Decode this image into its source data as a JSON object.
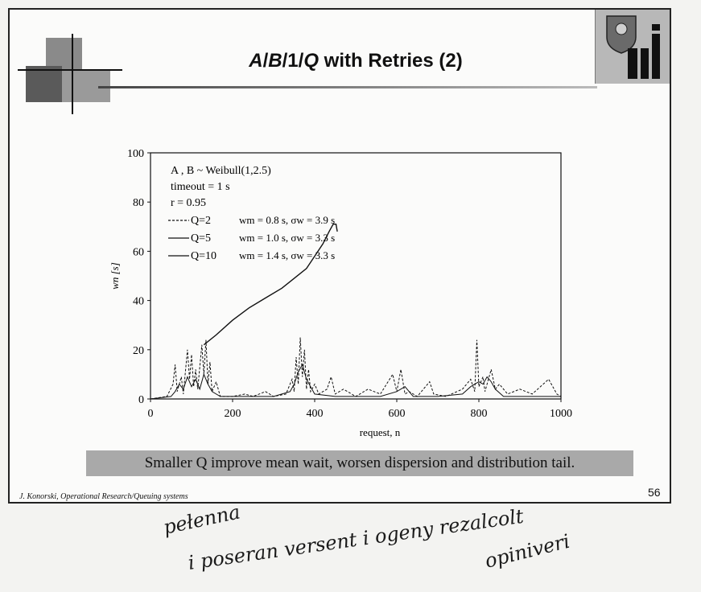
{
  "slide": {
    "title_parts": [
      {
        "text": "A",
        "italic": true
      },
      {
        "text": "/",
        "italic": false
      },
      {
        "text": "B",
        "italic": true
      },
      {
        "text": "/1/",
        "italic": false
      },
      {
        "text": "Q",
        "italic": true
      },
      {
        "text": " with Retries (2)",
        "italic": false
      }
    ],
    "callout": "Smaller Q improve mean wait, worsen dispersion and distribution tail.",
    "footer": "J. Konorski, Operational Research/Queuing systems",
    "page_number": "56"
  },
  "handwriting": {
    "lines": [
      "pełenna",
      "i poseran  versent  i  ogeny  rezalcolt",
      "opiniveri"
    ],
    "text_color": "#1a1a1a"
  },
  "chart_data": {
    "type": "line",
    "xlabel": "request, n",
    "ylabel": "wn [s]",
    "xlim": [
      0,
      1000
    ],
    "ylim": [
      0,
      100
    ],
    "xticks": [
      0,
      200,
      400,
      600,
      800,
      1000
    ],
    "yticks": [
      0,
      20,
      40,
      60,
      80,
      100
    ],
    "grid": false,
    "annotations": [
      "A , B ~ Weibull(1,2.5)",
      "timeout = 1 s",
      "r = 0.95"
    ],
    "legend_position": "top-left",
    "series": [
      {
        "name": "Q=2",
        "legend_text": "wm = 0.8 s, σw = 3.9 s",
        "style": "dashed",
        "points": [
          [
            0,
            0
          ],
          [
            40,
            1
          ],
          [
            55,
            6
          ],
          [
            60,
            14
          ],
          [
            65,
            3
          ],
          [
            75,
            9
          ],
          [
            80,
            2
          ],
          [
            90,
            20
          ],
          [
            95,
            8
          ],
          [
            100,
            18
          ],
          [
            105,
            5
          ],
          [
            110,
            12
          ],
          [
            115,
            4
          ],
          [
            125,
            22
          ],
          [
            130,
            10
          ],
          [
            135,
            24
          ],
          [
            140,
            6
          ],
          [
            145,
            15
          ],
          [
            150,
            3
          ],
          [
            160,
            7
          ],
          [
            170,
            1
          ],
          [
            200,
            1
          ],
          [
            230,
            2
          ],
          [
            250,
            1
          ],
          [
            280,
            3
          ],
          [
            300,
            1
          ],
          [
            330,
            2
          ],
          [
            345,
            8
          ],
          [
            350,
            3
          ],
          [
            355,
            17
          ],
          [
            360,
            6
          ],
          [
            365,
            25
          ],
          [
            370,
            9
          ],
          [
            375,
            20
          ],
          [
            380,
            4
          ],
          [
            385,
            12
          ],
          [
            390,
            3
          ],
          [
            400,
            6
          ],
          [
            410,
            2
          ],
          [
            430,
            4
          ],
          [
            440,
            9
          ],
          [
            450,
            2
          ],
          [
            470,
            4
          ],
          [
            500,
            1
          ],
          [
            530,
            4
          ],
          [
            560,
            2
          ],
          [
            590,
            10
          ],
          [
            600,
            3
          ],
          [
            610,
            12
          ],
          [
            620,
            2
          ],
          [
            630,
            3
          ],
          [
            650,
            1
          ],
          [
            680,
            7
          ],
          [
            690,
            2
          ],
          [
            720,
            1
          ],
          [
            760,
            4
          ],
          [
            780,
            8
          ],
          [
            790,
            3
          ],
          [
            795,
            24
          ],
          [
            800,
            5
          ],
          [
            810,
            9
          ],
          [
            815,
            3
          ],
          [
            830,
            12
          ],
          [
            840,
            4
          ],
          [
            850,
            6
          ],
          [
            870,
            2
          ],
          [
            900,
            4
          ],
          [
            930,
            2
          ],
          [
            970,
            8
          ],
          [
            990,
            2
          ],
          [
            1000,
            1
          ]
        ]
      },
      {
        "name": "Q=5",
        "legend_text": "wm = 1.0 s, σw = 3.3 s",
        "style": "solid",
        "points": [
          [
            0,
            0
          ],
          [
            50,
            1
          ],
          [
            60,
            3
          ],
          [
            70,
            6
          ],
          [
            80,
            4
          ],
          [
            90,
            9
          ],
          [
            100,
            5
          ],
          [
            110,
            8
          ],
          [
            120,
            4
          ],
          [
            130,
            10
          ],
          [
            140,
            6
          ],
          [
            150,
            3
          ],
          [
            170,
            1
          ],
          [
            220,
            1
          ],
          [
            300,
            1
          ],
          [
            340,
            3
          ],
          [
            350,
            6
          ],
          [
            360,
            11
          ],
          [
            370,
            14
          ],
          [
            380,
            8
          ],
          [
            390,
            5
          ],
          [
            400,
            2
          ],
          [
            450,
            1
          ],
          [
            500,
            1
          ],
          [
            560,
            1
          ],
          [
            600,
            3
          ],
          [
            620,
            5
          ],
          [
            640,
            1
          ],
          [
            700,
            1
          ],
          [
            760,
            2
          ],
          [
            780,
            5
          ],
          [
            790,
            6
          ],
          [
            800,
            7
          ],
          [
            810,
            6
          ],
          [
            820,
            9
          ],
          [
            830,
            7
          ],
          [
            840,
            4
          ],
          [
            860,
            1
          ],
          [
            920,
            1
          ],
          [
            1000,
            1
          ]
        ]
      },
      {
        "name": "Q=10",
        "legend_text": "wm = 1.4 s, σw = 3.3 s",
        "style": "solid",
        "points": [
          [
            130,
            22
          ],
          [
            160,
            26
          ],
          [
            200,
            32
          ],
          [
            240,
            37
          ],
          [
            280,
            41
          ],
          [
            320,
            45
          ],
          [
            350,
            49
          ],
          [
            380,
            53
          ],
          [
            400,
            58
          ],
          [
            420,
            63
          ],
          [
            435,
            68
          ],
          [
            445,
            71
          ],
          [
            452,
            71
          ],
          [
            455,
            68
          ]
        ]
      }
    ]
  }
}
